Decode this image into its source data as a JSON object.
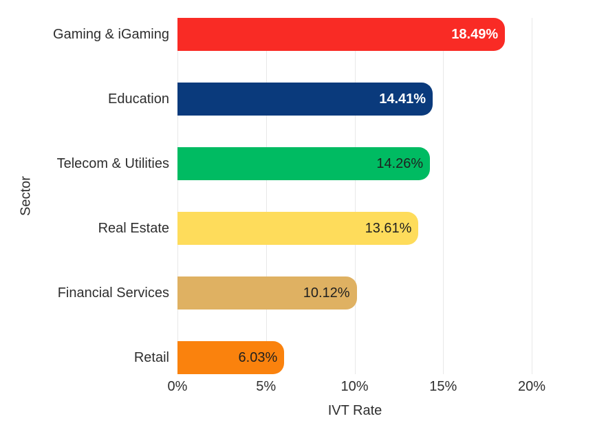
{
  "chart_data": {
    "type": "bar",
    "orientation": "horizontal",
    "title": "",
    "xlabel": "IVT Rate",
    "ylabel": "Sector",
    "categories": [
      "Gaming & iGaming",
      "Education",
      "Telecom & Utilities",
      "Real Estate",
      "Financial Services",
      "Retail"
    ],
    "values": [
      18.49,
      14.41,
      14.26,
      13.61,
      10.12,
      6.03
    ],
    "value_labels": [
      "18.49%",
      "14.41%",
      "14.26%",
      "13.61%",
      "10.12%",
      "6.03%"
    ],
    "bar_colors": [
      "#f92b25",
      "#0a3a7c",
      "#00bb62",
      "#fedc5b",
      "#dfb162",
      "#fa820d"
    ],
    "value_label_colors": [
      "#ffffff",
      "#ffffff",
      "#1f1f1f",
      "#1f1f1f",
      "#1f1f1f",
      "#1f1f1f"
    ],
    "xlim": [
      0,
      20
    ],
    "x_ticks": [
      {
        "value": 0,
        "label": "0%"
      },
      {
        "value": 5,
        "label": "5%"
      },
      {
        "value": 10,
        "label": "10%"
      },
      {
        "value": 15,
        "label": "15%"
      },
      {
        "value": 20,
        "label": "20%"
      }
    ],
    "grid": true,
    "gridline_color": "#e8e8e8",
    "background": "#ffffff",
    "text_color": "#2e2e2e",
    "legend": null
  }
}
